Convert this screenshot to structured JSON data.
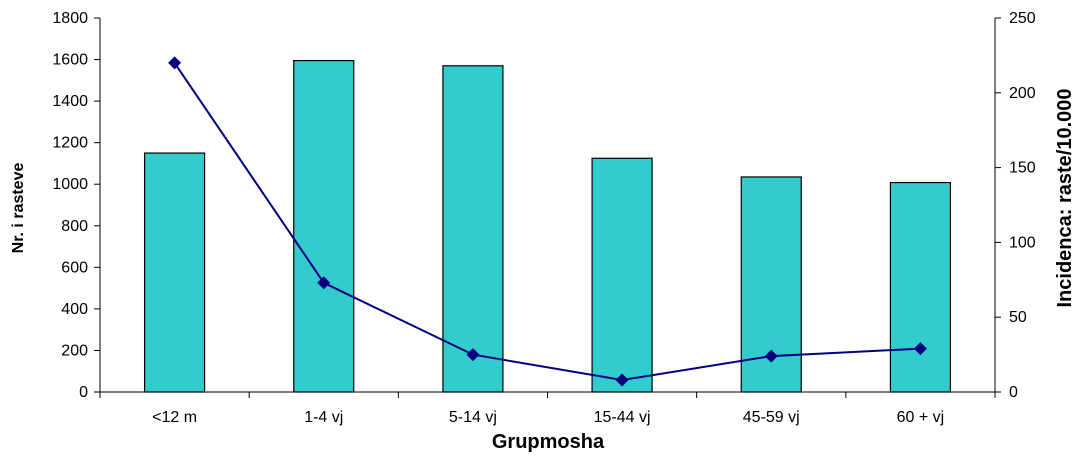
{
  "chart_data": {
    "type": "bar",
    "categories": [
      "<12 m",
      "1-4 vj",
      "5-14 vj",
      "15-44 vj",
      "45-59 vj",
      "60 + vj"
    ],
    "series": [
      {
        "type": "bar",
        "axis": "left",
        "values": [
          1150,
          1595,
          1570,
          1125,
          1035,
          1008
        ]
      },
      {
        "type": "line",
        "axis": "right",
        "values": [
          220,
          73,
          25,
          8,
          24,
          29
        ]
      }
    ],
    "title": "",
    "xlabel": "Grupmosha",
    "ylabel": "Nr. i rasteve",
    "y2label": "Incidenca: raste/10.000",
    "ylim": [
      0,
      1800
    ],
    "y2lim": [
      0,
      250
    ],
    "yticks": [
      "0",
      "200",
      "400",
      "600",
      "800",
      "1000",
      "1200",
      "1400",
      "1600",
      "1800"
    ],
    "y2ticks": [
      "0",
      "50",
      "100",
      "150",
      "200",
      "250"
    ],
    "grid": false,
    "legend": "none",
    "colors": {
      "bar_fill": "#33CCCC",
      "bar_stroke": "#000000",
      "line": "#000080",
      "marker": "#000080"
    }
  }
}
